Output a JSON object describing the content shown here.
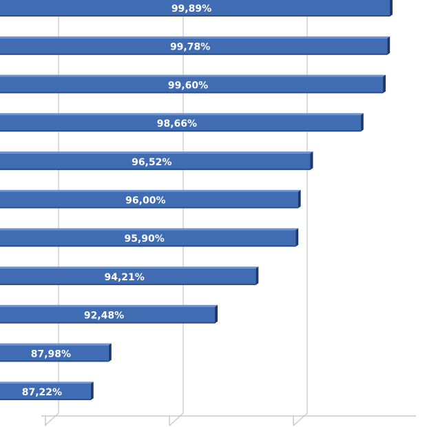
{
  "chart_data": {
    "type": "bar",
    "orientation": "horizontal",
    "title": "",
    "xlabel": "",
    "ylabel": "",
    "grid": true,
    "xlim": [
      83.2,
      101
    ],
    "series": [
      {
        "values": [
          99.89,
          99.78,
          99.6,
          98.66,
          96.52,
          96.0,
          95.9,
          94.21,
          92.48,
          87.98,
          87.22
        ],
        "labels": [
          "99,89%",
          "99,78%",
          "99,60%",
          "98,66%",
          "96,52%",
          "96,00%",
          "95,90%",
          "94,21%",
          "92,48%",
          "87,98%",
          "87,22%"
        ]
      }
    ],
    "colors": {
      "bar_face": "#3f6cb2",
      "bar_top": "#6f93cf",
      "bar_side": "#1c3a70",
      "grid": "#c8c8c8",
      "label": "#ffffff"
    }
  }
}
